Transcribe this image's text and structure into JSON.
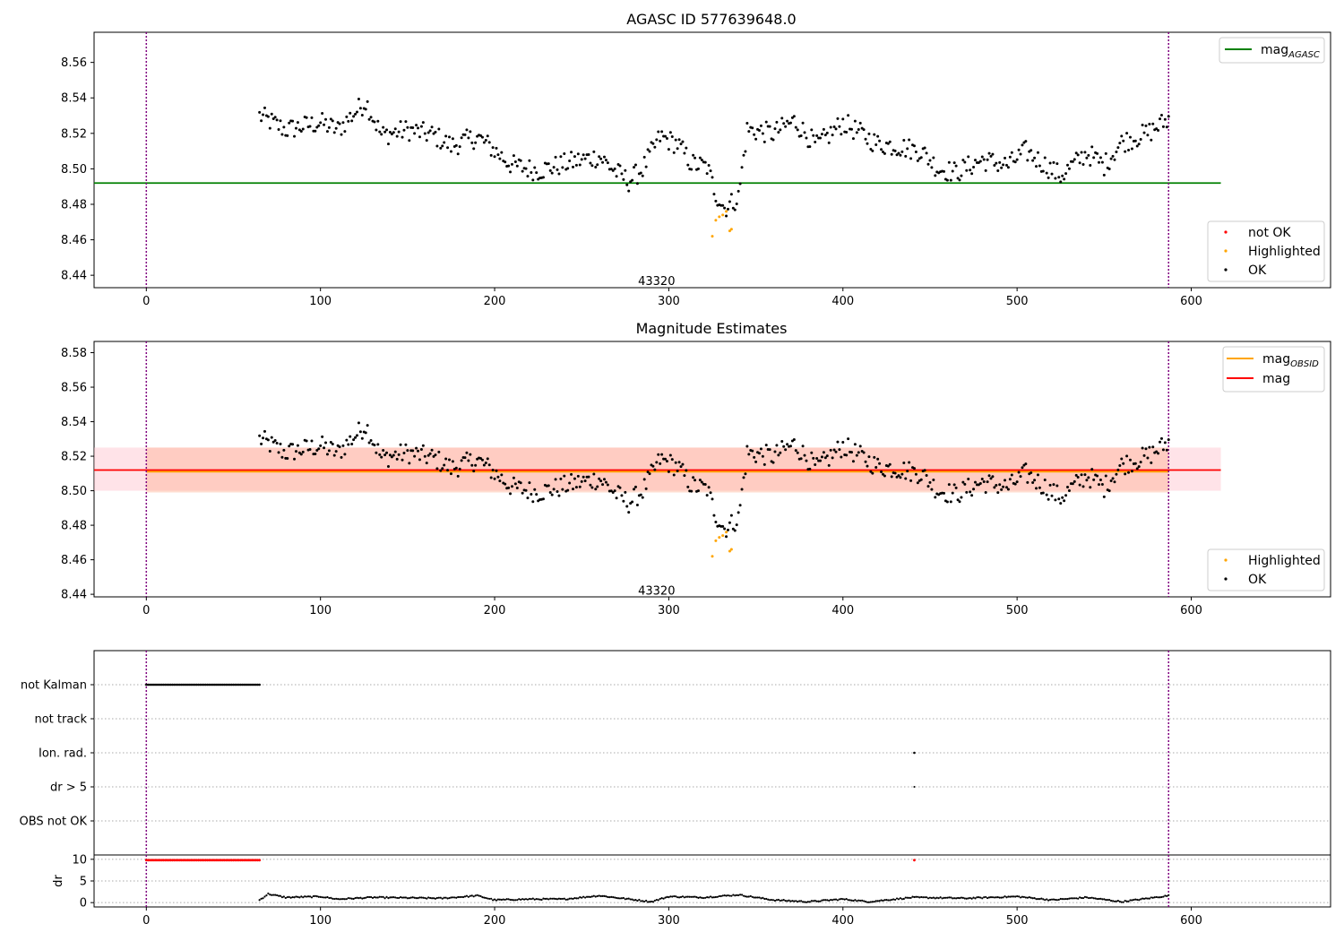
{
  "chart_data": [
    {
      "panel": "top",
      "type": "scatter",
      "title": "AGASC ID 577639648.0",
      "xlim": [
        -30,
        680
      ],
      "ylim": [
        8.433,
        8.577
      ],
      "xticks": [
        "0",
        "100",
        "200",
        "300",
        "400",
        "500",
        "600"
      ],
      "yticks": [
        "8.44",
        "8.46",
        "8.48",
        "8.50",
        "8.52",
        "8.54",
        "8.56"
      ],
      "vlines": [
        0,
        587
      ],
      "annotation": {
        "text": "43320",
        "x": 293,
        "y": 8.437
      },
      "reference_line": {
        "name": "mag_AGASC",
        "label_main": "mag",
        "label_sub": "AGASC",
        "y": 8.492,
        "x_range": [
          -30,
          617
        ],
        "color": "#008000"
      },
      "legend_lines": [
        {
          "label_main": "mag",
          "label_sub": "AGASC",
          "color": "#008000"
        }
      ],
      "legend_markers": [
        {
          "label": "not OK",
          "color": "#ff0000"
        },
        {
          "label": "Highlighted",
          "color": "#ffa500"
        },
        {
          "label": "OK",
          "color": "#000000"
        }
      ],
      "legend_placement": [
        "top-right",
        "bottom-right"
      ],
      "series": [
        {
          "name": "OK",
          "color": "#000000",
          "x_range": [
            65,
            587
          ],
          "values_shape": "anchors",
          "anchors": [
            [
              65,
              8.53
            ],
            [
              80,
              8.522
            ],
            [
              100,
              8.526
            ],
            [
              110,
              8.522
            ],
            [
              120,
              8.532
            ],
            [
              126,
              8.538
            ],
            [
              135,
              8.519
            ],
            [
              150,
              8.522
            ],
            [
              165,
              8.519
            ],
            [
              175,
              8.513
            ],
            [
              190,
              8.518
            ],
            [
              198,
              8.512
            ],
            [
              210,
              8.502
            ],
            [
              225,
              8.499
            ],
            [
              245,
              8.504
            ],
            [
              260,
              8.507
            ],
            [
              270,
              8.498
            ],
            [
              277,
              8.493
            ],
            [
              285,
              8.5
            ],
            [
              295,
              8.518
            ],
            [
              305,
              8.514
            ],
            [
              313,
              8.503
            ],
            [
              322,
              8.501
            ],
            [
              327,
              8.486
            ],
            [
              332,
              8.478
            ],
            [
              335,
              8.48
            ],
            [
              340,
              8.484
            ],
            [
              345,
              8.522
            ],
            [
              360,
              8.52
            ],
            [
              372,
              8.527
            ],
            [
              385,
              8.513
            ],
            [
              400,
              8.526
            ],
            [
              410,
              8.52
            ],
            [
              420,
              8.514
            ],
            [
              430,
              8.513
            ],
            [
              445,
              8.51
            ],
            [
              455,
              8.5
            ],
            [
              465,
              8.498
            ],
            [
              480,
              8.505
            ],
            [
              495,
              8.502
            ],
            [
              505,
              8.51
            ],
            [
              515,
              8.503
            ],
            [
              525,
              8.496
            ],
            [
              540,
              8.509
            ],
            [
              550,
              8.502
            ],
            [
              560,
              8.515
            ],
            [
              575,
              8.52
            ],
            [
              587,
              8.528
            ]
          ]
        },
        {
          "name": "Highlighted",
          "color": "#ffa500",
          "points": [
            [
              325,
              8.462
            ],
            [
              327,
              8.471
            ],
            [
              329,
              8.473
            ],
            [
              331,
              8.474
            ],
            [
              333,
              8.476
            ],
            [
              335,
              8.465
            ],
            [
              336,
              8.466
            ]
          ]
        }
      ]
    },
    {
      "panel": "middle",
      "type": "scatter",
      "title": "Magnitude Estimates",
      "xlim": [
        -30,
        680
      ],
      "ylim": [
        8.4385,
        8.5865
      ],
      "xticks": [
        "0",
        "100",
        "200",
        "300",
        "400",
        "500",
        "600"
      ],
      "yticks": [
        "8.44",
        "8.46",
        "8.48",
        "8.50",
        "8.52",
        "8.54",
        "8.56",
        "8.58"
      ],
      "vlines": [
        0,
        587
      ],
      "annotation": {
        "text": "43320",
        "x": 293,
        "y": 8.4425
      },
      "bands": [
        {
          "name": "mag band",
          "y": [
            8.5,
            8.525
          ],
          "x_range": [
            -30,
            617
          ],
          "color": "#ffc0cb",
          "opacity": 0.45
        },
        {
          "name": "mag_OBSID band",
          "y": [
            8.499,
            8.525
          ],
          "x_range": [
            0,
            587
          ],
          "color": "#ffa07a",
          "opacity": 0.35
        }
      ],
      "reference_lines": [
        {
          "name": "mag_OBSID",
          "label_main": "mag",
          "label_sub": "OBSID",
          "y": 8.511,
          "x_range": [
            0,
            587
          ],
          "color": "#ffa500"
        },
        {
          "name": "mag",
          "label_main": "mag",
          "label_sub": "",
          "y": 8.512,
          "x_range": [
            -30,
            617
          ],
          "color": "#ff0000"
        }
      ],
      "legend_lines": [
        {
          "label_main": "mag",
          "label_sub": "OBSID",
          "color": "#ffa500"
        },
        {
          "label_main": "mag",
          "label_sub": "",
          "color": "#ff0000"
        }
      ],
      "legend_markers": [
        {
          "label": "Highlighted",
          "color": "#ffa500"
        },
        {
          "label": "OK",
          "color": "#000000"
        }
      ],
      "legend_placement": [
        "top-right",
        "bottom-right"
      ]
    },
    {
      "panel": "flags",
      "type": "scatter",
      "xlim": [
        -30,
        680
      ],
      "categories": [
        "not Kalman",
        "not track",
        "Ion. rad.",
        "dr > 5",
        "OBS not OK"
      ],
      "vlines": [
        0,
        587
      ],
      "grid": "horizontal dotted",
      "series": [
        {
          "name": "not Kalman",
          "x_range": [
            0,
            65
          ],
          "color": "#000000"
        },
        {
          "name": "Ion. rad.",
          "x": [
            441
          ],
          "color": "#000000"
        },
        {
          "name": "dr > 5",
          "x": [
            441
          ],
          "color": "#000000"
        }
      ]
    },
    {
      "panel": "dr",
      "type": "scatter",
      "ylabel": "dr",
      "xlim": [
        -30,
        680
      ],
      "ylim": [
        -1,
        11
      ],
      "xticks": [
        "0",
        "100",
        "200",
        "300",
        "400",
        "500",
        "600"
      ],
      "yticks": [
        "0",
        "5",
        "10"
      ],
      "vlines": [
        0,
        587
      ],
      "grid": "horizontal dotted",
      "series": [
        {
          "name": "dr (clipped)",
          "color": "#ff0000",
          "x_range": [
            0,
            65
          ],
          "y": 9.8,
          "extra_x": [
            441
          ]
        },
        {
          "name": "dr",
          "color": "#000000",
          "x_range": [
            65,
            587
          ],
          "values_shape": "wave",
          "anchors": [
            [
              65,
              0.6
            ],
            [
              70,
              2.0
            ],
            [
              80,
              1.2
            ],
            [
              100,
              1.4
            ],
            [
              110,
              0.8
            ],
            [
              130,
              1.2
            ],
            [
              170,
              1.0
            ],
            [
              190,
              1.6
            ],
            [
              200,
              0.6
            ],
            [
              220,
              0.8
            ],
            [
              240,
              0.8
            ],
            [
              260,
              1.6
            ],
            [
              290,
              0.2
            ],
            [
              300,
              1.4
            ],
            [
              320,
              1.2
            ],
            [
              340,
              1.8
            ],
            [
              360,
              0.6
            ],
            [
              380,
              0.2
            ],
            [
              400,
              0.8
            ],
            [
              415,
              0.2
            ],
            [
              440,
              1.2
            ],
            [
              470,
              1.0
            ],
            [
              500,
              1.4
            ],
            [
              520,
              0.6
            ],
            [
              540,
              1.2
            ],
            [
              560,
              0.2
            ],
            [
              587,
              1.6
            ]
          ]
        }
      ]
    }
  ]
}
